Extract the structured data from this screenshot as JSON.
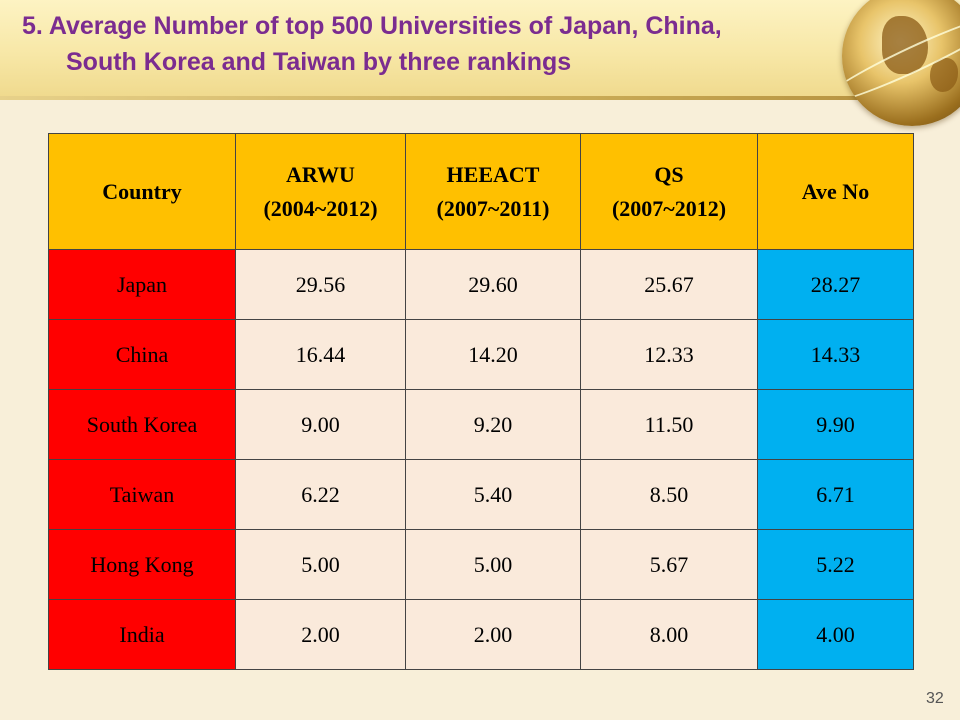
{
  "title": {
    "line1": "5. Average Number of top 500 Universities of Japan, China,",
    "line2": "South Korea and Taiwan  by three rankings"
  },
  "table": {
    "headers": [
      {
        "line1": "Country",
        "line2": ""
      },
      {
        "line1": "ARWU",
        "line2": "(2004~2012)"
      },
      {
        "line1": "HEEACT",
        "line2": "(2007~2011)"
      },
      {
        "line1": "QS",
        "line2": "(2007~2012)"
      },
      {
        "line1": "Ave No",
        "line2": ""
      }
    ],
    "rows": [
      {
        "country": "Japan",
        "arwu": "29.56",
        "heeact": "29.60",
        "qs": "25.67",
        "ave": "28.27"
      },
      {
        "country": "China",
        "arwu": "16.44",
        "heeact": "14.20",
        "qs": "12.33",
        "ave": "14.33"
      },
      {
        "country": "South Korea",
        "arwu": "9.00",
        "heeact": "9.20",
        "qs": "11.50",
        "ave": "9.90"
      },
      {
        "country": "Taiwan",
        "arwu": "6.22",
        "heeact": "5.40",
        "qs": "8.50",
        "ave": "6.71"
      },
      {
        "country": "Hong Kong",
        "arwu": "5.00",
        "heeact": "5.00",
        "qs": "5.67",
        "ave": "5.22"
      },
      {
        "country": "India",
        "arwu": "2.00",
        "heeact": "2.00",
        "qs": "8.00",
        "ave": "4.00"
      }
    ]
  },
  "page_number": "32",
  "colors": {
    "title": "#7b2c90",
    "header_bg": "#ffc000",
    "country_bg": "#ff0000",
    "value_bg": "#faeadb",
    "ave_bg": "#00b0f0",
    "slide_bg": "#f8efd9"
  },
  "decor": {
    "globe_icon": "globe-icon"
  }
}
